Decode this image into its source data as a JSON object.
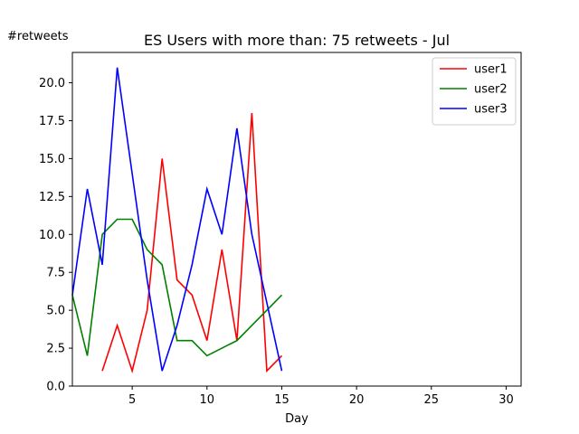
{
  "chart_data": {
    "type": "line",
    "title": "ES Users with more than: 75 retweets - Jul",
    "xlabel": "Day",
    "ylabel": "#retweets",
    "xlim": [
      1,
      31
    ],
    "ylim": [
      0,
      22
    ],
    "x_ticks": [
      5,
      10,
      15,
      20,
      25,
      30
    ],
    "y_ticks": [
      0.0,
      2.5,
      5.0,
      7.5,
      10.0,
      12.5,
      15.0,
      17.5,
      20.0
    ],
    "y_tick_labels": [
      "0.0",
      "2.5",
      "5.0",
      "7.5",
      "10.0",
      "12.5",
      "15.0",
      "17.5",
      "20.0"
    ],
    "grid": false,
    "legend_position": "top-right",
    "series": [
      {
        "name": "user1",
        "color": "#ff0000",
        "points": [
          [
            3,
            1
          ],
          [
            4,
            4
          ],
          [
            5,
            1
          ],
          [
            6,
            5
          ],
          [
            7,
            15
          ],
          [
            8,
            7
          ],
          [
            9,
            6
          ],
          [
            10,
            3
          ],
          [
            11,
            9
          ],
          [
            12,
            3
          ],
          [
            13,
            18
          ],
          [
            14,
            1
          ],
          [
            15,
            2
          ]
        ]
      },
      {
        "name": "user2",
        "color": "#008000",
        "points": [
          [
            1,
            6
          ],
          [
            2,
            2
          ],
          [
            3,
            10
          ],
          [
            4,
            11
          ],
          [
            5,
            11
          ],
          [
            6,
            9
          ],
          [
            7,
            8
          ],
          [
            8,
            3
          ],
          [
            9,
            3
          ],
          [
            10,
            2
          ],
          [
            12,
            3
          ],
          [
            15,
            6
          ]
        ]
      },
      {
        "name": "user3",
        "color": "#0000ff",
        "points": [
          [
            1,
            6
          ],
          [
            2,
            13
          ],
          [
            3,
            8
          ],
          [
            4,
            21
          ],
          [
            5,
            14
          ],
          [
            6,
            7
          ],
          [
            7,
            1
          ],
          [
            8,
            4
          ],
          [
            9,
            8
          ],
          [
            10,
            13
          ],
          [
            11,
            10
          ],
          [
            12,
            17
          ],
          [
            13,
            10
          ],
          [
            15,
            1
          ]
        ]
      }
    ]
  }
}
